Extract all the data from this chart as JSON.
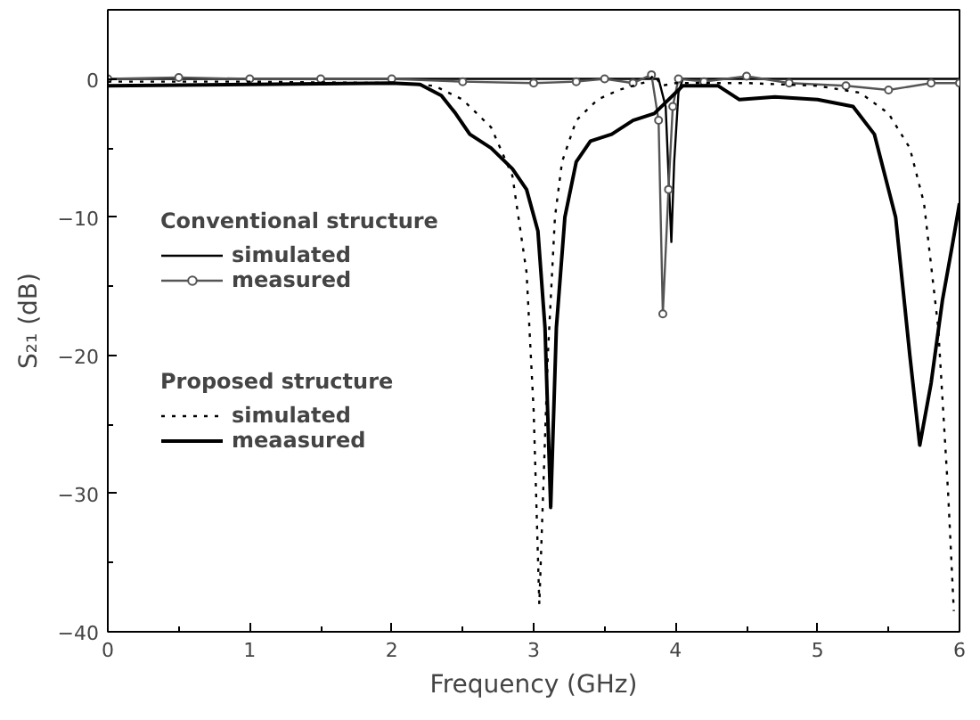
{
  "chart_data": {
    "type": "line",
    "xlabel": "Frequency (GHz)",
    "ylabel": "S₂₁ (dB)",
    "xlim": [
      0,
      6
    ],
    "ylim": [
      -40,
      5
    ],
    "xticks": [
      0,
      1,
      2,
      3,
      4,
      5,
      6
    ],
    "yticks": [
      -40,
      -30,
      -20,
      -10,
      0
    ],
    "grid": false,
    "legend": "left",
    "annotations": [
      "Conventional structure",
      "Proposed structure"
    ],
    "series": [
      {
        "name": "simulated",
        "color": "#000000",
        "line_style": "solid",
        "marker": "none",
        "x": [
          0,
          3.88,
          3.93,
          3.97,
          3.99,
          4.02,
          4.05,
          6
        ],
        "values": [
          0,
          0,
          -2,
          -11.8,
          -6,
          -1,
          0,
          0
        ]
      },
      {
        "name": "measured",
        "color": "#555555",
        "line_style": "solid",
        "marker": "circle",
        "x": [
          0,
          0.5,
          1,
          1.5,
          2,
          2.5,
          3,
          3.3,
          3.5,
          3.7,
          3.83,
          3.88,
          3.91,
          3.95,
          3.98,
          4.02,
          4.2,
          4.5,
          4.8,
          5.2,
          5.5,
          5.8,
          6
        ],
        "values": [
          0,
          0.1,
          0,
          0,
          0,
          -0.2,
          -0.3,
          -0.2,
          0,
          -0.3,
          0.3,
          -3,
          -17,
          -8,
          -2,
          0,
          -0.2,
          0.2,
          -0.3,
          -0.5,
          -0.8,
          -0.3,
          -0.3
        ]
      },
      {
        "name": "simulated",
        "color": "#000000",
        "line_style": "dotted",
        "marker": "none",
        "x": [
          0,
          1,
          2,
          2.3,
          2.5,
          2.7,
          2.85,
          2.95,
          3.0,
          3.04,
          3.1,
          3.15,
          3.2,
          3.3,
          3.45,
          3.6,
          3.8,
          3.85,
          3.9,
          4.0,
          4.5,
          5.0,
          5.3,
          5.5,
          5.65,
          5.75,
          5.85,
          5.92,
          5.96
        ],
        "values": [
          -0.2,
          -0.2,
          -0.3,
          -0.5,
          -1.5,
          -3.5,
          -7,
          -14,
          -24,
          -38,
          -20,
          -10,
          -6,
          -3,
          -1.5,
          -0.8,
          -0.2,
          0.3,
          -0.5,
          -0.3,
          -0.3,
          -0.5,
          -1,
          -2.5,
          -5,
          -9,
          -18,
          -30,
          -38.5
        ]
      },
      {
        "name": "meaasured",
        "color": "#000000",
        "line_style": "solid",
        "marker": "none",
        "x": [
          0,
          1,
          2,
          2.2,
          2.35,
          2.45,
          2.55,
          2.7,
          2.85,
          2.95,
          3.03,
          3.08,
          3.12,
          3.16,
          3.22,
          3.3,
          3.4,
          3.55,
          3.7,
          3.85,
          3.95,
          4.05,
          4.3,
          4.45,
          4.7,
          5.0,
          5.25,
          5.4,
          5.55,
          5.65,
          5.72,
          5.8,
          5.88,
          5.95,
          6.0
        ],
        "values": [
          -0.5,
          -0.4,
          -0.3,
          -0.4,
          -1.2,
          -2.5,
          -4,
          -5,
          -6.5,
          -8,
          -11,
          -18,
          -31,
          -18,
          -10,
          -6,
          -4.5,
          -4,
          -3,
          -2.5,
          -1.5,
          -0.5,
          -0.5,
          -1.5,
          -1.3,
          -1.5,
          -2,
          -4,
          -10,
          -20,
          -26.5,
          -22,
          -16,
          -12,
          -9
        ]
      }
    ]
  }
}
